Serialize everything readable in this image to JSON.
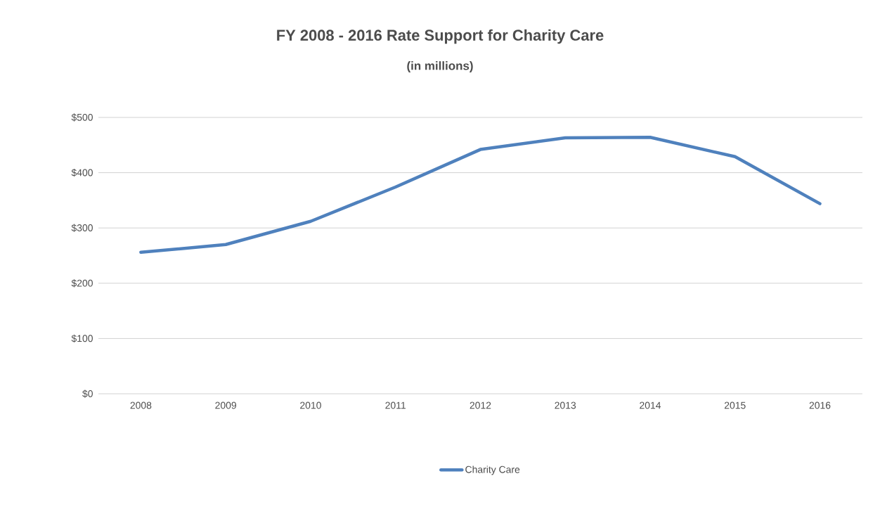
{
  "chart_data": {
    "type": "line",
    "title": "FY 2008 - 2016 Rate Support for Charity Care",
    "subtitle": "(in millions)",
    "categories": [
      "2008",
      "2009",
      "2010",
      "2011",
      "2012",
      "2013",
      "2014",
      "2015",
      "2016"
    ],
    "series": [
      {
        "name": "Charity Care",
        "color": "#4f81bd",
        "values": [
          256,
          270,
          312,
          374,
          442,
          463,
          464,
          429,
          344
        ]
      }
    ],
    "ylim": [
      0,
      500
    ],
    "yticks": [
      {
        "value": 0,
        "label": "$0"
      },
      {
        "value": 100,
        "label": "$100"
      },
      {
        "value": 200,
        "label": "$200"
      },
      {
        "value": 300,
        "label": "$300"
      },
      {
        "value": 400,
        "label": "$400"
      },
      {
        "value": 500,
        "label": "$500"
      }
    ],
    "grid": "y",
    "legend": "bottom",
    "marker": "none",
    "line_style": "solid"
  }
}
